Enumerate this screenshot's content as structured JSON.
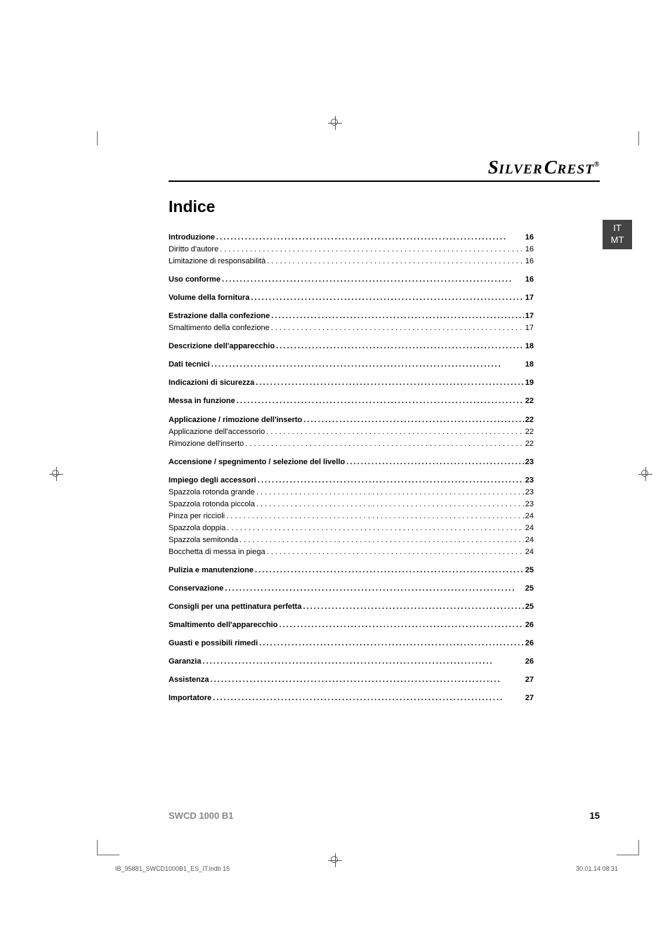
{
  "brand": "SILVERCREST®",
  "brand_prefix": "S",
  "brand_middle": "ILVER",
  "brand_prefix2": "C",
  "brand_rest": "REST",
  "brand_reg": "®",
  "lang_tab": {
    "line1": "IT",
    "line2": "MT"
  },
  "title": "Indice",
  "toc": [
    {
      "type": "group",
      "rows": [
        {
          "bold": true,
          "label": "Introduzione",
          "page": "16"
        },
        {
          "bold": false,
          "label": "Diritto d'autore",
          "page": "16"
        },
        {
          "bold": false,
          "label": "Limitazione di responsabilità",
          "page": "16"
        }
      ]
    },
    {
      "type": "group",
      "rows": [
        {
          "bold": true,
          "label": "Uso conforme",
          "page": "16"
        }
      ]
    },
    {
      "type": "group",
      "rows": [
        {
          "bold": true,
          "label": "Volume della fornitura",
          "page": "17"
        }
      ]
    },
    {
      "type": "group",
      "rows": [
        {
          "bold": true,
          "label": "Estrazione dalla confezione",
          "page": "17"
        },
        {
          "bold": false,
          "label": "Smaltimento della confezione",
          "page": "17"
        }
      ]
    },
    {
      "type": "group",
      "rows": [
        {
          "bold": true,
          "label": "Descrizione dell'apparecchio",
          "page": "18"
        }
      ]
    },
    {
      "type": "group",
      "rows": [
        {
          "bold": true,
          "label": "Dati tecnici",
          "page": "18"
        }
      ]
    },
    {
      "type": "group",
      "rows": [
        {
          "bold": true,
          "label": "Indicazioni di sicurezza",
          "page": "19"
        }
      ]
    },
    {
      "type": "group",
      "rows": [
        {
          "bold": true,
          "label": "Messa in funzione",
          "page": "22"
        }
      ]
    },
    {
      "type": "group",
      "rows": [
        {
          "bold": true,
          "label": "Applicazione / rimozione dell'inserto",
          "page": "22"
        },
        {
          "bold": false,
          "label": "Applicazione dell'accessorio",
          "page": "22"
        },
        {
          "bold": false,
          "label": "Rimozione dell'inserto",
          "page": "22"
        }
      ]
    },
    {
      "type": "group",
      "rows": [
        {
          "bold": true,
          "label": "Accensione / spegnimento / selezione del livello",
          "page": "23"
        }
      ]
    },
    {
      "type": "group",
      "rows": [
        {
          "bold": true,
          "label": "Impiego degli accessori",
          "page": "23"
        },
        {
          "bold": false,
          "label": "Spazzola rotonda grande",
          "page": "23"
        },
        {
          "bold": false,
          "label": "Spazzola rotonda piccola",
          "page": "23"
        },
        {
          "bold": false,
          "label": "Pinza per riccioli",
          "page": "24"
        },
        {
          "bold": false,
          "label": "Spazzola doppia",
          "page": "24"
        },
        {
          "bold": false,
          "label": "Spazzola semitonda",
          "page": "24"
        },
        {
          "bold": false,
          "label": "Bocchetta di messa in piega",
          "page": "24"
        }
      ]
    },
    {
      "type": "group",
      "rows": [
        {
          "bold": true,
          "label": "Pulizia e manutenzione",
          "page": "25"
        }
      ]
    },
    {
      "type": "group",
      "rows": [
        {
          "bold": true,
          "label": "Conservazione",
          "page": "25"
        }
      ]
    },
    {
      "type": "group",
      "rows": [
        {
          "bold": true,
          "label": "Consigli per una pettinatura perfetta",
          "page": "25"
        }
      ]
    },
    {
      "type": "group",
      "rows": [
        {
          "bold": true,
          "label": "Smaltimento dell'apparecchio",
          "page": "26"
        }
      ]
    },
    {
      "type": "group",
      "rows": [
        {
          "bold": true,
          "label": "Guasti e possibili rimedi",
          "page": "26"
        }
      ]
    },
    {
      "type": "group",
      "rows": [
        {
          "bold": true,
          "label": "Garanzia",
          "page": "26"
        }
      ]
    },
    {
      "type": "group",
      "rows": [
        {
          "bold": true,
          "label": "Assistenza",
          "page": "27"
        }
      ]
    },
    {
      "type": "group",
      "rows": [
        {
          "bold": true,
          "label": "Importatore",
          "page": "27"
        }
      ]
    }
  ],
  "footer": {
    "model": "SWCD 1000 B1",
    "page": "15"
  },
  "imprint": {
    "left": "IB_95881_SWCD1000B1_ES_IT.indb   15",
    "right": "30.01.14   08:31"
  },
  "colors": {
    "tab_bg": "#444444",
    "model_color": "#888888",
    "text": "#000000"
  }
}
